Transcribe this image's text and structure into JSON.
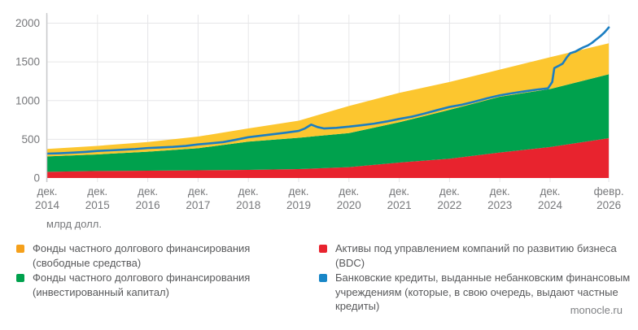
{
  "labels": {
    "units": "млрд долл.",
    "source": "monocle.ru"
  },
  "chart_data": {
    "type": "area",
    "subtype": "stacked-area-with-line",
    "grid": true,
    "ylim": [
      0,
      2000
    ],
    "y_ticks": [
      0,
      500,
      1000,
      1500,
      2000
    ],
    "x_ticks": [
      {
        "month": 0,
        "line1": "дек.",
        "line2": "2014"
      },
      {
        "month": 12,
        "line1": "дек.",
        "line2": "2015"
      },
      {
        "month": 24,
        "line1": "дек.",
        "line2": "2016"
      },
      {
        "month": 36,
        "line1": "дек.",
        "line2": "2017"
      },
      {
        "month": 48,
        "line1": "дек.",
        "line2": "2018"
      },
      {
        "month": 60,
        "line1": "дек.",
        "line2": "2019"
      },
      {
        "month": 72,
        "line1": "дек.",
        "line2": "2020"
      },
      {
        "month": 84,
        "line1": "дек.",
        "line2": "2021"
      },
      {
        "month": 96,
        "line1": "дек.",
        "line2": "2022"
      },
      {
        "month": 108,
        "line1": "дек.",
        "line2": "2023"
      },
      {
        "month": 120,
        "line1": "дек.",
        "line2": "2024"
      },
      {
        "month": 134,
        "line1": "февр.",
        "line2": "2026"
      }
    ],
    "stack_months": [
      0,
      12,
      24,
      36,
      48,
      60,
      72,
      84,
      96,
      108,
      120,
      134
    ],
    "stack_series": [
      {
        "id": "bdc-assets",
        "name": "Активы под управлением компаний по развитию бизнеса (BDC)",
        "color": "#e8232e",
        "values": [
          80,
          90,
          95,
          100,
          105,
          115,
          140,
          200,
          250,
          330,
          400,
          515
        ]
      },
      {
        "id": "invested-capital",
        "name": "Фонды частного долгового финансирования (инвестированный капитал)",
        "color": "#00a14d",
        "values": [
          200,
          215,
          245,
          285,
          365,
          405,
          440,
          520,
          630,
          720,
          750,
          825
        ]
      },
      {
        "id": "free-funds",
        "name": "Фонды частного долгового финансирования (свободные средства)",
        "color": "#fcc62f",
        "values": [
          95,
          110,
          125,
          150,
          170,
          220,
          350,
          380,
          360,
          350,
          410,
          400
        ]
      }
    ],
    "line_series": {
      "id": "bank-loans",
      "name": "Банковские кредиты, выданные небанковским финансовым учреждениям (которые, в свою очередь, выдают частные кредиты)",
      "color": "#1b7ec2",
      "points": [
        [
          0,
          315
        ],
        [
          3,
          320
        ],
        [
          6,
          327
        ],
        [
          9,
          337
        ],
        [
          12,
          350
        ],
        [
          15,
          357
        ],
        [
          18,
          365
        ],
        [
          21,
          374
        ],
        [
          24,
          387
        ],
        [
          27,
          394
        ],
        [
          30,
          402
        ],
        [
          33,
          414
        ],
        [
          36,
          434
        ],
        [
          39,
          448
        ],
        [
          42,
          464
        ],
        [
          45,
          494
        ],
        [
          48,
          527
        ],
        [
          51,
          547
        ],
        [
          54,
          566
        ],
        [
          57,
          586
        ],
        [
          60,
          608
        ],
        [
          61.5,
          640
        ],
        [
          63,
          690
        ],
        [
          64.5,
          658
        ],
        [
          66,
          640
        ],
        [
          69,
          648
        ],
        [
          72,
          663
        ],
        [
          75,
          682
        ],
        [
          78,
          702
        ],
        [
          81,
          730
        ],
        [
          84,
          763
        ],
        [
          87,
          792
        ],
        [
          90,
          832
        ],
        [
          93,
          876
        ],
        [
          96,
          918
        ],
        [
          99,
          947
        ],
        [
          102,
          987
        ],
        [
          105,
          1030
        ],
        [
          108,
          1068
        ],
        [
          111,
          1096
        ],
        [
          114,
          1120
        ],
        [
          117,
          1143
        ],
        [
          119.5,
          1158
        ],
        [
          120.5,
          1240
        ],
        [
          121,
          1420
        ],
        [
          122,
          1448
        ],
        [
          123,
          1478
        ],
        [
          124,
          1560
        ],
        [
          124.8,
          1612
        ],
        [
          126,
          1632
        ],
        [
          127,
          1662
        ],
        [
          128,
          1690
        ],
        [
          129,
          1712
        ],
        [
          130,
          1746
        ],
        [
          131,
          1790
        ],
        [
          132,
          1832
        ],
        [
          133,
          1882
        ],
        [
          134,
          1945
        ]
      ]
    },
    "legend": {
      "columns": [
        [
          {
            "marker_color": "#f5a01b",
            "lines": [
              "Фонды частного долгового финансирования",
              "(свободные средства)"
            ]
          },
          {
            "marker_color": "#00a14d",
            "lines": [
              "Фонды частного долгового финансирования",
              "(инвестированный капитал)"
            ]
          }
        ],
        [
          {
            "marker_color": "#e8232e",
            "lines": [
              "Активы под управлением компаний по развитию бизнеса (BDC)"
            ]
          },
          {
            "marker_color": "#1886c7",
            "lines": [
              "Банковские кредиты, выданные небанковским финансовым",
              "учреждениям (которые, в свою очередь, выдают частные",
              "кредиты)"
            ]
          }
        ]
      ]
    },
    "style": {
      "grid_color": "#e6e6e8",
      "axis_color": "#c7c8ca",
      "tick_text_color": "#77787b"
    }
  }
}
